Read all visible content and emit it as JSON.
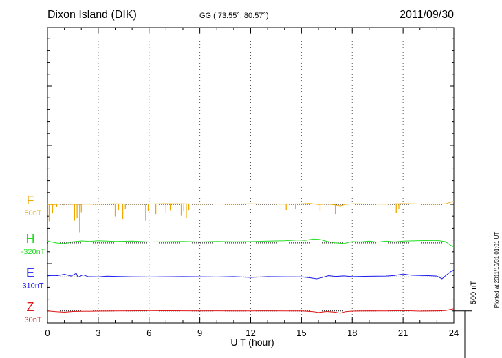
{
  "header": {
    "station": "Dixon Island (DIK)",
    "coords": "GG ( 73.55°,  80.57°)",
    "date": "2011/09/30"
  },
  "plotted_note": "Plotted at 2011/10/31 01:01 UT",
  "scale_label": "500 nT",
  "chart_data": {
    "type": "line",
    "xlabel": "U T (hour)",
    "xlim": [
      0,
      24
    ],
    "xticks": [
      0,
      3,
      6,
      9,
      12,
      15,
      18,
      21,
      24
    ],
    "scale_bar_nT": 500,
    "grid": "vertical dotted at 3-hour intervals",
    "series": [
      {
        "name": "F",
        "baseline_label": "50nT",
        "color": "#f0a800",
        "baseline_nT": 1000,
        "points": [
          [
            0,
            1000
          ],
          [
            0.3,
            997
          ],
          [
            0.6,
            1001
          ],
          [
            1,
            1003
          ],
          [
            1.5,
            1000
          ],
          [
            2,
            1002
          ],
          [
            3,
            1002
          ],
          [
            4,
            1004
          ],
          [
            5,
            1001
          ],
          [
            6,
            1003
          ],
          [
            7,
            1005
          ],
          [
            8,
            1004
          ],
          [
            9,
            1002
          ],
          [
            10,
            1003
          ],
          [
            11,
            1002
          ],
          [
            12,
            1004
          ],
          [
            13,
            1003
          ],
          [
            14,
            1002
          ],
          [
            15,
            1004
          ],
          [
            15.5,
            1007
          ],
          [
            16,
            998
          ],
          [
            16.5,
            1003
          ],
          [
            17,
            996
          ],
          [
            17.3,
            988
          ],
          [
            17.6,
            1000
          ],
          [
            18,
            1004
          ],
          [
            19,
            1003
          ],
          [
            20,
            1002
          ],
          [
            21,
            1006
          ],
          [
            22,
            1003
          ],
          [
            23,
            1001
          ],
          [
            23.5,
            1004
          ],
          [
            24,
            1025
          ]
        ],
        "spikes": [
          [
            0.1,
            -145
          ],
          [
            0.3,
            -80
          ],
          [
            0.55,
            -25
          ],
          [
            0.95,
            -10
          ],
          [
            1.6,
            -140
          ],
          [
            1.75,
            -118
          ],
          [
            1.9,
            -238
          ],
          [
            2.0,
            -70
          ],
          [
            4.0,
            -105
          ],
          [
            4.2,
            -50
          ],
          [
            4.45,
            -125
          ],
          [
            4.6,
            -40
          ],
          [
            5.8,
            -140
          ],
          [
            5.95,
            -60
          ],
          [
            6.4,
            -85
          ],
          [
            7.0,
            -78
          ],
          [
            7.25,
            -52
          ],
          [
            7.9,
            -100
          ],
          [
            8.05,
            -62
          ],
          [
            8.2,
            -115
          ],
          [
            8.35,
            -50
          ],
          [
            14.1,
            -50
          ],
          [
            14.65,
            -40
          ],
          [
            16.1,
            -55
          ],
          [
            17.0,
            -85
          ],
          [
            20.6,
            -75
          ],
          [
            20.75,
            -40
          ]
        ]
      },
      {
        "name": "H",
        "baseline_label": "-320nT",
        "color": "#22dd22",
        "baseline_nT": 675,
        "points": [
          [
            0,
            690
          ],
          [
            0.5,
            675
          ],
          [
            1,
            668
          ],
          [
            1.5,
            685
          ],
          [
            2,
            692
          ],
          [
            2.5,
            688
          ],
          [
            3,
            693
          ],
          [
            4,
            688
          ],
          [
            5,
            690
          ],
          [
            6,
            683
          ],
          [
            7,
            685
          ],
          [
            8,
            688
          ],
          [
            9,
            683
          ],
          [
            10,
            687
          ],
          [
            11,
            685
          ],
          [
            12,
            686
          ],
          [
            13,
            690
          ],
          [
            14,
            693
          ],
          [
            14.8,
            700
          ],
          [
            15.2,
            696
          ],
          [
            15.7,
            708
          ],
          [
            16.1,
            704
          ],
          [
            16.5,
            688
          ],
          [
            17,
            675
          ],
          [
            17.5,
            670
          ],
          [
            18,
            686
          ],
          [
            18.5,
            684
          ],
          [
            19,
            690
          ],
          [
            19.5,
            682
          ],
          [
            20,
            690
          ],
          [
            20.5,
            684
          ],
          [
            21,
            690
          ],
          [
            22,
            694
          ],
          [
            23,
            696
          ],
          [
            23.5,
            686
          ],
          [
            23.8,
            655
          ],
          [
            24,
            640
          ]
        ]
      },
      {
        "name": "E",
        "baseline_label": "310nT",
        "color": "#1a1aee",
        "baseline_nT": 387,
        "points": [
          [
            0,
            397
          ],
          [
            0.3,
            400
          ],
          [
            0.6,
            398
          ],
          [
            1,
            410
          ],
          [
            1.4,
            395
          ],
          [
            1.7,
            418
          ],
          [
            1.8,
            385
          ],
          [
            2.1,
            405
          ],
          [
            2.4,
            390
          ],
          [
            3,
            388
          ],
          [
            3.5,
            394
          ],
          [
            4,
            392
          ],
          [
            5,
            389
          ],
          [
            6,
            387
          ],
          [
            7,
            389
          ],
          [
            8,
            390
          ],
          [
            9,
            389
          ],
          [
            10,
            387
          ],
          [
            11,
            390
          ],
          [
            12,
            384
          ],
          [
            13,
            390
          ],
          [
            14,
            389
          ],
          [
            15,
            388
          ],
          [
            15.5,
            381
          ],
          [
            15.9,
            372
          ],
          [
            16.2,
            382
          ],
          [
            16.6,
            398
          ],
          [
            17,
            392
          ],
          [
            17.5,
            396
          ],
          [
            18,
            390
          ],
          [
            19,
            393
          ],
          [
            20,
            395
          ],
          [
            20.5,
            400
          ],
          [
            21,
            412
          ],
          [
            21.5,
            402
          ],
          [
            22,
            400
          ],
          [
            22.5,
            398
          ],
          [
            23,
            395
          ],
          [
            23.3,
            372
          ],
          [
            23.5,
            397
          ],
          [
            23.8,
            430
          ],
          [
            24,
            447
          ]
        ]
      },
      {
        "name": "Z",
        "baseline_label": "30nT",
        "color": "#e01818",
        "baseline_nT": 100,
        "points": [
          [
            0,
            100
          ],
          [
            0.5,
            95
          ],
          [
            1,
            90
          ],
          [
            1.5,
            96
          ],
          [
            2,
            97
          ],
          [
            3,
            99
          ],
          [
            4,
            100
          ],
          [
            5,
            101
          ],
          [
            6,
            103
          ],
          [
            7,
            102
          ],
          [
            8,
            101
          ],
          [
            9,
            100
          ],
          [
            10,
            101
          ],
          [
            11,
            100
          ],
          [
            12,
            100
          ],
          [
            13,
            101
          ],
          [
            14,
            100
          ],
          [
            15,
            100
          ],
          [
            15.7,
            95
          ],
          [
            16,
            88
          ],
          [
            16.5,
            96
          ],
          [
            17,
            90
          ],
          [
            17.3,
            82
          ],
          [
            17.6,
            95
          ],
          [
            18,
            99
          ],
          [
            19,
            101
          ],
          [
            20,
            100
          ],
          [
            21,
            103
          ],
          [
            22,
            99
          ],
          [
            23,
            101
          ],
          [
            23.5,
            103
          ],
          [
            24,
            118
          ]
        ]
      }
    ]
  }
}
